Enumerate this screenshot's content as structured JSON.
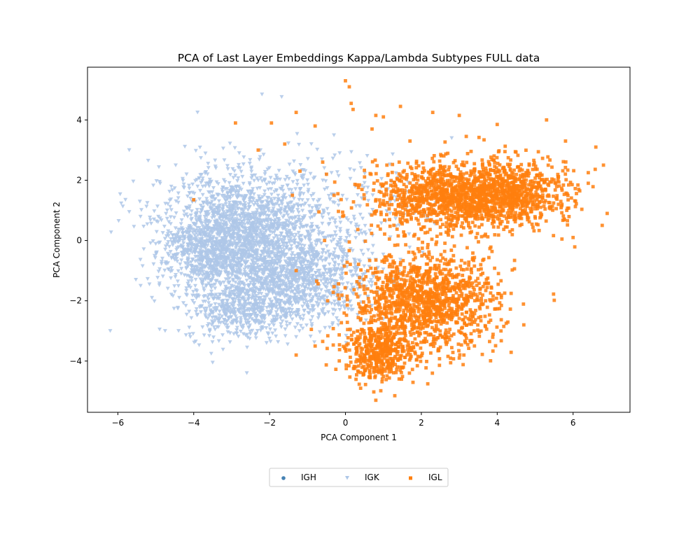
{
  "chart_data": {
    "type": "scatter",
    "title": "PCA of Last Layer Embeddings Kappa/Lambda Subtypes FULL data",
    "xlabel": "PCA Component 1",
    "ylabel": "PCA Component 2",
    "xlim": [
      -6.8,
      7.5
    ],
    "ylim": [
      -5.7,
      5.75
    ],
    "x_ticks": [
      -6,
      -4,
      -2,
      0,
      2,
      4,
      6
    ],
    "y_ticks": [
      -4,
      -2,
      0,
      2,
      4
    ],
    "x_tick_labels": [
      "−6",
      "−4",
      "−2",
      "0",
      "2",
      "4",
      "6"
    ],
    "y_tick_labels": [
      "−4",
      "−2",
      "0",
      "2",
      "4"
    ],
    "grid": false,
    "legend_placement": "bottom-center, outside plot, 3 columns",
    "series": [
      {
        "name": "IGH",
        "marker": "circle",
        "color": "#4682b4",
        "clusters": []
      },
      {
        "name": "IGK",
        "marker": "triangle-down",
        "color": "#aec7e8",
        "clusters": [
          {
            "cx": -2.6,
            "cy": 0.4,
            "sx": 1.1,
            "sy": 0.95,
            "n": 1700
          },
          {
            "cx": -1.6,
            "cy": -1.3,
            "sx": 1.1,
            "sy": 0.75,
            "n": 1300
          },
          {
            "cx": -3.7,
            "cy": -0.4,
            "sx": 0.55,
            "sy": 0.6,
            "n": 450
          },
          {
            "cx": -2.8,
            "cy": -2.4,
            "sx": 0.7,
            "sy": 0.45,
            "n": 350
          },
          {
            "cx": 0.3,
            "cy": 1.2,
            "sx": 1.0,
            "sy": 1.0,
            "n": 120
          }
        ],
        "outliers": [
          [
            -6.2,
            -3.0
          ],
          [
            -5.7,
            3.0
          ],
          [
            -5.2,
            2.65
          ],
          [
            -5.8,
            1.35
          ],
          [
            -5.7,
            0.95
          ],
          [
            -5.4,
            -1.5
          ],
          [
            -5.1,
            -1.9
          ],
          [
            -4.7,
            1.0
          ],
          [
            -3.9,
            4.25
          ],
          [
            -2.2,
            4.85
          ],
          [
            -2.6,
            -4.4
          ],
          [
            -3.5,
            -4.05
          ],
          [
            -4.9,
            -2.95
          ],
          [
            2.8,
            3.4
          ],
          [
            -1.3,
            -3.2
          ],
          [
            -4.9,
            1.95
          ],
          [
            -4.4,
            -3.0
          ],
          [
            -0.9,
            3.2
          ]
        ]
      },
      {
        "name": "IGL",
        "marker": "square",
        "color": "#ff7f0e",
        "clusters": [
          {
            "cx": 3.1,
            "cy": 1.45,
            "sx": 1.15,
            "sy": 0.55,
            "n": 1500
          },
          {
            "cx": 2.1,
            "cy": -2.05,
            "sx": 0.95,
            "sy": 0.8,
            "n": 1300
          },
          {
            "cx": 0.9,
            "cy": -3.7,
            "sx": 0.45,
            "sy": 0.45,
            "n": 450
          },
          {
            "cx": 4.6,
            "cy": 1.7,
            "sx": 0.6,
            "sy": 0.55,
            "n": 300
          }
        ],
        "outliers": [
          [
            0.0,
            5.3
          ],
          [
            0.1,
            5.1
          ],
          [
            0.15,
            4.55
          ],
          [
            0.2,
            4.35
          ],
          [
            1.45,
            4.45
          ],
          [
            2.3,
            4.25
          ],
          [
            3.0,
            4.15
          ],
          [
            4.0,
            3.85
          ],
          [
            5.3,
            4.0
          ],
          [
            -2.9,
            3.9
          ],
          [
            -1.3,
            4.25
          ],
          [
            -0.8,
            3.8
          ],
          [
            -1.95,
            3.9
          ],
          [
            -2.3,
            3.0
          ],
          [
            -1.6,
            3.2
          ],
          [
            -0.6,
            2.6
          ],
          [
            -0.5,
            2.2
          ],
          [
            -1.4,
            1.5
          ],
          [
            -1.2,
            2.3
          ],
          [
            -4.0,
            1.35
          ],
          [
            -1.3,
            -1.0
          ],
          [
            -0.7,
            0.95
          ],
          [
            -0.2,
            1.55
          ],
          [
            0.1,
            -0.05
          ],
          [
            6.0,
            0.1
          ],
          [
            6.4,
            2.25
          ],
          [
            6.6,
            3.1
          ],
          [
            6.8,
            2.5
          ],
          [
            6.4,
            1.9
          ],
          [
            5.8,
            3.3
          ],
          [
            -0.9,
            -2.95
          ],
          [
            -0.8,
            -3.5
          ],
          [
            -0.6,
            -3.35
          ],
          [
            0.8,
            -5.3
          ],
          [
            1.3,
            -5.15
          ],
          [
            0.4,
            -4.9
          ],
          [
            4.7,
            -2.8
          ],
          [
            3.0,
            -3.9
          ],
          [
            -1.3,
            -3.8
          ],
          [
            0.8,
            4.15
          ],
          [
            1.0,
            4.1
          ],
          [
            0.7,
            3.7
          ],
          [
            1.7,
            3.3
          ],
          [
            -0.55,
            0.0
          ],
          [
            -0.3,
            1.5
          ]
        ]
      }
    ]
  }
}
